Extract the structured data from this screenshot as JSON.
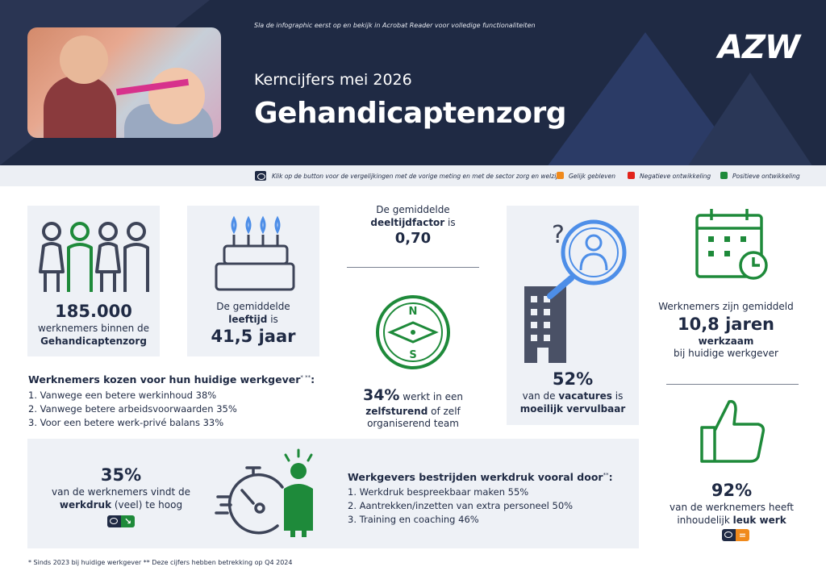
{
  "header": {
    "top_note": "Sla de infographic eerst op en bekijk in Acrobat Reader voor volledige functionaliteiten",
    "subtitle": "Kerncijfers mei 2026",
    "title": "Gehandicaptenzorg",
    "logo": "AZW"
  },
  "legend": {
    "note": "Klik op de button voor de vergelijkingen met de vorige meting en met de sector zorg en welzijn.",
    "items": [
      {
        "label": "Gelijk gebleven",
        "color": "#f08a1c"
      },
      {
        "label": "Negatieve ontwikkeling",
        "color": "#e2231a"
      },
      {
        "label": "Positieve ontwikkeling",
        "color": "#1e8a3a"
      }
    ]
  },
  "workers": {
    "value": "185.000",
    "line1": "werknemers binnen de",
    "line2": "Gehandicaptenzorg"
  },
  "age": {
    "line1": "De gemiddelde",
    "line2_bold": "leeftijd",
    "line2_rest": " is",
    "value": "41,5 jaar"
  },
  "parttime": {
    "line1": "De gemiddelde",
    "line2_bold": "deeltijdfactor",
    "line2_rest": " is",
    "value": "0,70"
  },
  "selfsteering": {
    "value": "34%",
    "text_rest": " werkt in een",
    "bold": "zelfsturend",
    "text2": " of zelf",
    "line3": "organiserend team"
  },
  "vacancies": {
    "value": "52%",
    "line1_pre": "van de ",
    "line1_bold": "vacatures",
    "line1_post": " is",
    "line2": "moeilijk vervulbaar"
  },
  "tenure": {
    "line1": "Werknemers zijn gemiddeld",
    "value": "10,8 jaren",
    "line3": "werkzaam",
    "line4": "bij huidige werkgever"
  },
  "choice": {
    "title": "Werknemers kozen voor hun huidige werkgever",
    "title_sup": "* **",
    "title_end": ":",
    "items": [
      "1. Vanwege een betere werkinhoud 38%",
      "2. Vanwege betere arbeidsvoorwaarden 35%",
      "3. Voor een betere werk-privé balans 33%"
    ]
  },
  "workload": {
    "value": "35%",
    "line1": "van de werknemers vindt de",
    "bold": "werkdruk",
    "rest": " (veel) te hoog"
  },
  "measures": {
    "title": "Werkgevers bestrijden werkdruk vooral door",
    "title_sup": "**",
    "title_end": ":",
    "items": [
      "1. Werkdruk bespreekbaar maken 55%",
      "2. Aantrekken/inzetten van extra personeel 50%",
      "3. Training en coaching 46%"
    ]
  },
  "fun": {
    "value": "92%",
    "line1": "van de werknemers heeft",
    "line2_pre": "inhoudelijk ",
    "line2_bold": "leuk werk"
  },
  "badges": {
    "workload_arrow": "↘",
    "fun_equal": "="
  },
  "footnote": "* Sinds 2023 bij huidige werkgever   ** Deze cijfers hebben betrekking op Q4 2024",
  "colors": {
    "navy": "#1f2a44",
    "green": "#1e8a3a",
    "orange": "#f08a1c",
    "red": "#e2231a",
    "card": "#eef1f6",
    "blue": "#4d8ee8"
  }
}
